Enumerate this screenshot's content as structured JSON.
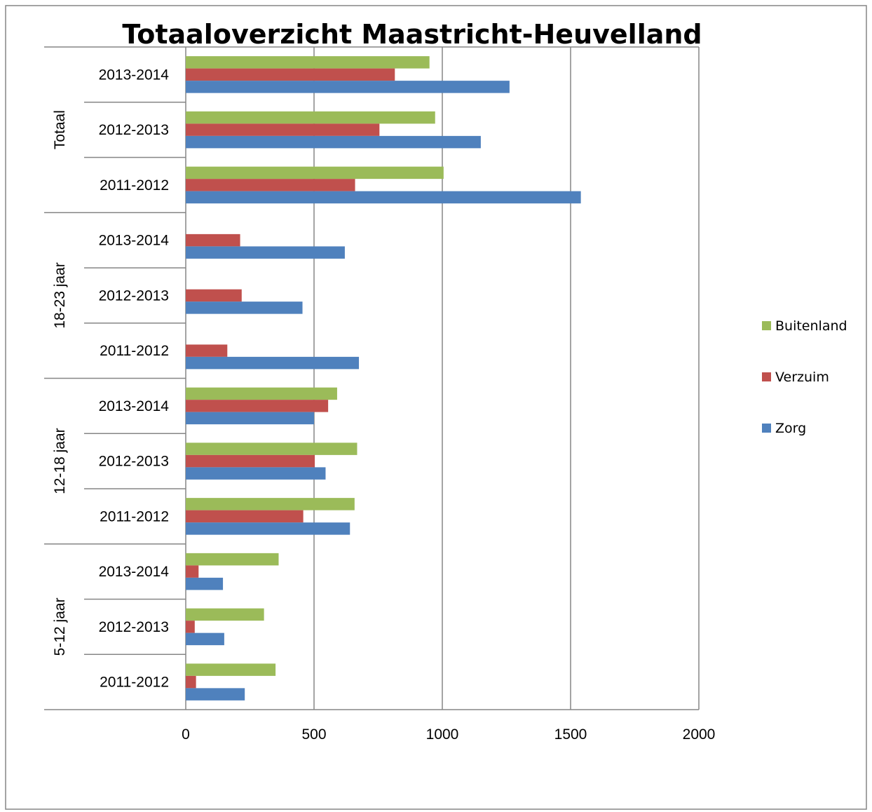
{
  "chart_data": {
    "type": "bar",
    "orientation": "horizontal",
    "title": "Totaaloverzicht Maastricht-Heuvelland",
    "xlabel": "",
    "ylabel": "",
    "xlim": [
      0,
      2000
    ],
    "xticks": [
      0,
      500,
      1000,
      1500,
      2000
    ],
    "grid": "vertical",
    "legend_position": "right",
    "groups": [
      {
        "label": "5-12 jaar",
        "categories": [
          "2011-2012",
          "2012-2013",
          "2013-2014"
        ],
        "series": [
          {
            "name": "Zorg",
            "values": [
              230,
              150,
              145
            ]
          },
          {
            "name": "Verzuim",
            "values": [
              40,
              35,
              50
            ]
          },
          {
            "name": "Buitenland",
            "values": [
              350,
              305,
              362
            ]
          }
        ]
      },
      {
        "label": "12-18 jaar",
        "categories": [
          "2011-2012",
          "2012-2013",
          "2013-2014"
        ],
        "series": [
          {
            "name": "Zorg",
            "values": [
              640,
              545,
              500
            ]
          },
          {
            "name": "Verzuim",
            "values": [
              458,
              503,
              555
            ]
          },
          {
            "name": "Buitenland",
            "values": [
              658,
              668,
              590
            ]
          }
        ]
      },
      {
        "label": "18-23 jaar",
        "categories": [
          "2011-2012",
          "2012-2013",
          "2013-2014"
        ],
        "series": [
          {
            "name": "Zorg",
            "values": [
              675,
              455,
              620
            ]
          },
          {
            "name": "Verzuim",
            "values": [
              162,
              218,
              212
            ]
          },
          {
            "name": "Buitenland",
            "values": [
              0,
              0,
              0
            ]
          }
        ]
      },
      {
        "label": "Totaal",
        "categories": [
          "2011-2012",
          "2012-2013",
          "2013-2014"
        ],
        "series": [
          {
            "name": "Zorg",
            "values": [
              1540,
              1150,
              1262
            ]
          },
          {
            "name": "Verzuim",
            "values": [
              660,
              755,
              815
            ]
          },
          {
            "name": "Buitenland",
            "values": [
              1005,
              972,
              950
            ]
          }
        ]
      }
    ],
    "legend": [
      {
        "name": "Buitenland",
        "color": "#9bbb59"
      },
      {
        "name": "Verzuim",
        "color": "#c0504d"
      },
      {
        "name": "Zorg",
        "color": "#4f81bd"
      }
    ]
  }
}
